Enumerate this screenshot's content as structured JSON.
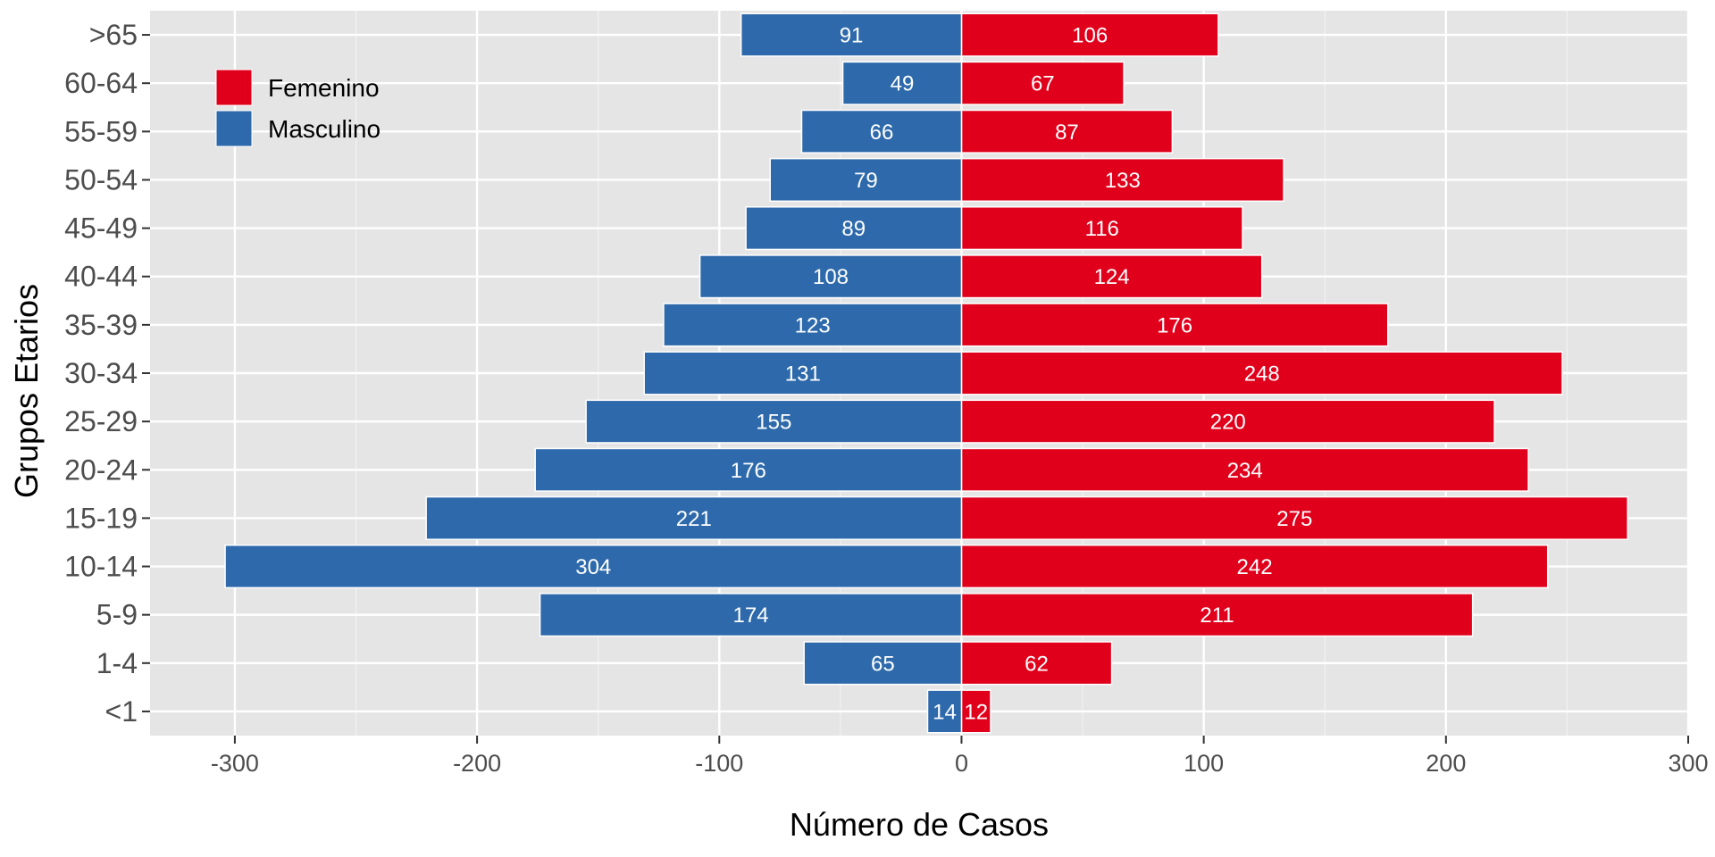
{
  "chart_data": {
    "type": "bar",
    "orientation": "horizontal",
    "layout": "population-pyramid",
    "xlabel": "Número de Casos",
    "ylabel": "Grupos Etarios",
    "xlim": [
      -335,
      300
    ],
    "xticks": [
      -300,
      -200,
      -100,
      0,
      100,
      200,
      300
    ],
    "grid": true,
    "legend_position": "top-left",
    "categories": [
      "<1",
      "1-4",
      "5-9",
      "10-14",
      "15-19",
      "20-24",
      "25-29",
      "30-34",
      "35-39",
      "40-44",
      "45-49",
      "50-54",
      "55-59",
      "60-64",
      ">65"
    ],
    "series": [
      {
        "name": "Femenino",
        "color": "#e0001b",
        "direction": "positive",
        "values": [
          12,
          62,
          211,
          242,
          275,
          234,
          220,
          248,
          176,
          124,
          116,
          133,
          87,
          67,
          106
        ]
      },
      {
        "name": "Masculino",
        "color": "#2e6aab",
        "direction": "negative",
        "values": [
          14,
          65,
          174,
          304,
          221,
          176,
          155,
          131,
          123,
          108,
          89,
          79,
          66,
          49,
          91
        ]
      }
    ]
  }
}
